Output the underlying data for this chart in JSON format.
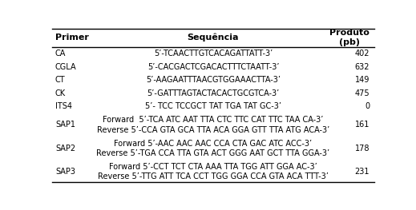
{
  "title_primer": "Primer",
  "title_seq": "Sequência",
  "title_prod": "Produto\n(pb)",
  "rows": [
    {
      "primer": "CA",
      "seq": [
        "5’-TCAACTTGTCACAGATTATT-3’"
      ],
      "prod": "402"
    },
    {
      "primer": "CGLA",
      "seq": [
        "5’-CACGACTCGACACTTTCTAATT-3’"
      ],
      "prod": "632"
    },
    {
      "primer": "CT",
      "seq": [
        "5’-AAGAATTTAACGTGGAAACTTA-3’"
      ],
      "prod": "149"
    },
    {
      "primer": "CK",
      "seq": [
        "5’-GATTTAGTACTACACTGCGTCA-3’"
      ],
      "prod": "475"
    },
    {
      "primer": "ITS4",
      "seq": [
        "5’- TCC TCCGCT TAT TGA TAT GC-3’"
      ],
      "prod": "0"
    },
    {
      "primer": "SAP1",
      "seq": [
        "Forward  5’-TCA ATC AAT TTA CTC TTC CAT TTC TAA CA-3’",
        "Reverse 5’-CCA GTA GCA TTA ACA GGA GTT TTA ATG ACA-3’"
      ],
      "prod": "161"
    },
    {
      "primer": "SAP2",
      "seq": [
        "Forward 5’-AAC AAC AAC CCA CTA GAC ATC ACC-3’",
        "Reverse 5’-TGA CCA TTA GTA ACT GGG AAT GCT TTA GGA-3’"
      ],
      "prod": "178"
    },
    {
      "primer": "SAP3",
      "seq": [
        "Forward 5’-CCT TCT CTA AAA TTA TGG ATT GGA AC-3’",
        "Reverse 5’-TTG ATT TCA CCT TGG GGA CCA GTA ACA TTT-3’"
      ],
      "prod": "231"
    }
  ],
  "header_line_color": "#000000",
  "bg_color": "#ffffff",
  "text_color": "#000000",
  "font_size": 7.0,
  "header_font_size": 8.0
}
